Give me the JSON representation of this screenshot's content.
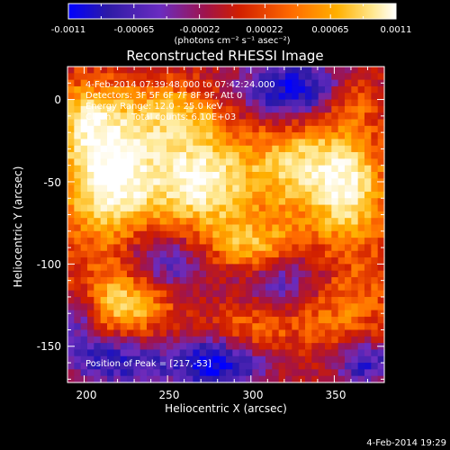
{
  "window": {
    "timestamp": "4-Feb-2014 19:29"
  },
  "colorbar": {
    "ticks": [
      "-0.0011",
      "-0.00065",
      "-0.00022",
      "0.00022",
      "0.00065",
      "0.0011"
    ],
    "units": "(photons cm⁻² s⁻¹ asec⁻²)",
    "min": -0.0011,
    "max": 0.0011
  },
  "annotations": {
    "time_range": "4-Feb-2014 07:39:48.000 to 07:42:24.000",
    "detectors": "Detectors: 3F 5F 6F 7F 8F 9F, Att 0",
    "energy": "Energy Range: 12.0 - 25.0 keV",
    "method": "Clean",
    "counts": "Total counts: 6.10E+03",
    "peak": "Position of Peak = [217,-53]"
  },
  "chart_data": {
    "type": "heatmap",
    "title": "Reconstructed RHESSI Image",
    "xlabel": "Heliocentric X (arcsec)",
    "ylabel": "Heliocentric Y (arcsec)",
    "xlim": [
      190,
      380
    ],
    "ylim": [
      -172,
      20
    ],
    "xticks": [
      200,
      250,
      300,
      350
    ],
    "yticks": [
      0,
      -50,
      -100,
      -150
    ],
    "colormap": "rhessi-hot",
    "colormap_stops": [
      "#0000ff",
      "#2d1aa6",
      "#6a2cc0",
      "#a0134a",
      "#d01e00",
      "#ff6a00",
      "#ffb000",
      "#ffe890",
      "#ffffff"
    ],
    "peak": [
      217,
      -53
    ],
    "sources": [
      {
        "x": 215,
        "y": -45,
        "sx": 20,
        "sy": 28,
        "amp": 0.95
      },
      {
        "x": 270,
        "y": -50,
        "sx": 22,
        "sy": 20,
        "amp": 0.85
      },
      {
        "x": 330,
        "y": -40,
        "sx": 20,
        "sy": 22,
        "amp": 0.65
      },
      {
        "x": 360,
        "y": -55,
        "sx": 14,
        "sy": 22,
        "amp": 0.7
      },
      {
        "x": 255,
        "y": -10,
        "sx": 22,
        "sy": 14,
        "amp": 0.5
      },
      {
        "x": 200,
        "y": -10,
        "sx": 12,
        "sy": 14,
        "amp": 0.45
      },
      {
        "x": 225,
        "y": -120,
        "sx": 20,
        "sy": 18,
        "amp": 0.7
      },
      {
        "x": 300,
        "y": -90,
        "sx": 22,
        "sy": 12,
        "amp": 0.55
      },
      {
        "x": 350,
        "y": -120,
        "sx": 22,
        "sy": 20,
        "amp": 0.45
      },
      {
        "x": 360,
        "y": 0,
        "sx": 12,
        "sy": 10,
        "amp": 0.4
      },
      {
        "x": 300,
        "y": -140,
        "sx": 16,
        "sy": 12,
        "amp": 0.35
      }
    ],
    "negatives": [
      {
        "x": 325,
        "y": 5,
        "sx": 25,
        "sy": 14,
        "amp": 0.9
      },
      {
        "x": 245,
        "y": -100,
        "sx": 22,
        "sy": 14,
        "amp": 0.75
      },
      {
        "x": 325,
        "y": -110,
        "sx": 22,
        "sy": 14,
        "amp": 0.7
      },
      {
        "x": 280,
        "y": -160,
        "sx": 22,
        "sy": 12,
        "amp": 0.9
      },
      {
        "x": 220,
        "y": -158,
        "sx": 20,
        "sy": 12,
        "amp": 0.75
      },
      {
        "x": 368,
        "y": -160,
        "sx": 14,
        "sy": 10,
        "amp": 0.7
      },
      {
        "x": 198,
        "y": -135,
        "sx": 8,
        "sy": 14,
        "amp": 0.55
      }
    ]
  }
}
